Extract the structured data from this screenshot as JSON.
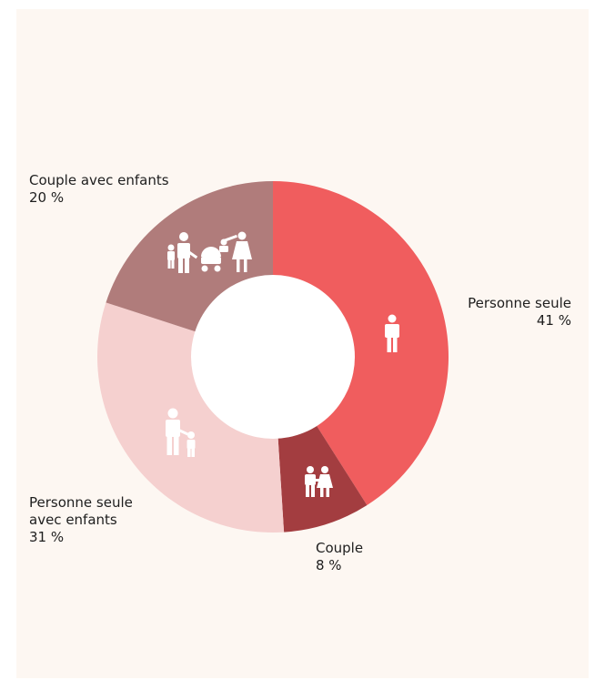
{
  "chart_data": {
    "type": "pie",
    "donut": true,
    "title": "",
    "slices": [
      {
        "label": "Personne seule",
        "value_label": "41 %",
        "value": 41,
        "color": "#f05d5e",
        "icon": "single-person-icon"
      },
      {
        "label": "Couple",
        "value_label": "8 %",
        "value": 8,
        "color": "#a33d40",
        "icon": "couple-icon"
      },
      {
        "label": "Personne seule avec enfants",
        "label_lines": [
          "Personne seule",
          "avec enfants"
        ],
        "value_label": "31 %",
        "value": 31,
        "color": "#f5d0cf",
        "icon": "parent-child-icon"
      },
      {
        "label": "Couple avec enfants",
        "value_label": "20 %",
        "value": 20,
        "color": "#b07c7b",
        "icon": "family-with-stroller-icon"
      }
    ]
  }
}
